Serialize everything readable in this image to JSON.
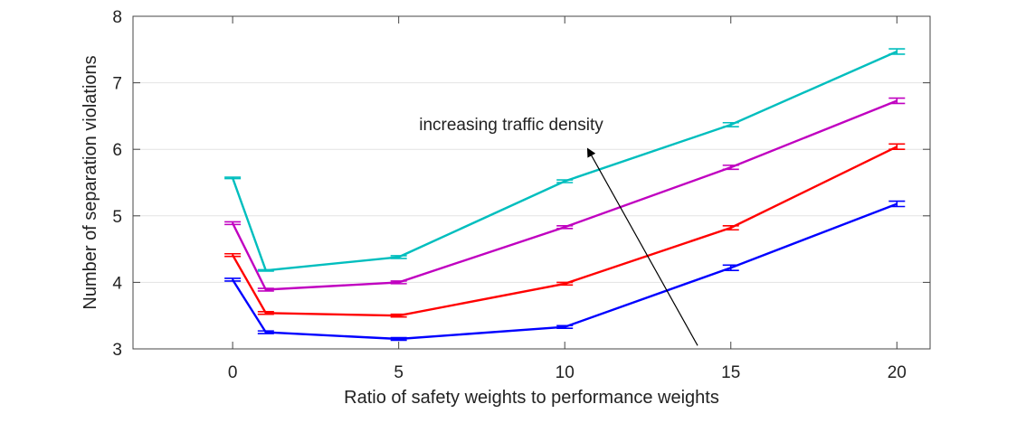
{
  "chart_data": {
    "type": "line",
    "xlabel": "Ratio of safety weights to performance weights",
    "ylabel": "Number of separation violations",
    "xlim": [
      -3,
      21
    ],
    "ylim": [
      3,
      8
    ],
    "xticks": [
      0,
      5,
      10,
      15,
      20
    ],
    "yticks": [
      3,
      4,
      5,
      6,
      7,
      8
    ],
    "grid": "horizontal",
    "x": [
      0,
      1,
      5,
      10,
      15,
      20
    ],
    "series": [
      {
        "color": "#0000ff",
        "values": [
          4.04,
          3.25,
          3.15,
          3.33,
          4.22,
          5.18
        ],
        "errors": [
          0.02,
          0.02,
          0.02,
          0.02,
          0.04,
          0.04
        ]
      },
      {
        "color": "#ff0000",
        "values": [
          4.41,
          3.54,
          3.5,
          3.98,
          4.82,
          6.04
        ],
        "errors": [
          0.02,
          0.02,
          0.02,
          0.02,
          0.03,
          0.04
        ]
      },
      {
        "color": "#c000c0",
        "values": [
          4.89,
          3.89,
          4.0,
          4.83,
          5.73,
          6.73
        ],
        "errors": [
          0.02,
          0.02,
          0.02,
          0.02,
          0.03,
          0.04
        ]
      },
      {
        "color": "#00bebe",
        "values": [
          5.57,
          4.18,
          4.38,
          5.52,
          6.37,
          7.47
        ],
        "errors": [
          0.01,
          0.01,
          0.02,
          0.02,
          0.03,
          0.04
        ]
      }
    ],
    "annotation": {
      "text": "increasing traffic density",
      "arrow_from": [
        14.0,
        3.05
      ],
      "arrow_to": [
        10.7,
        6.0
      ]
    }
  }
}
